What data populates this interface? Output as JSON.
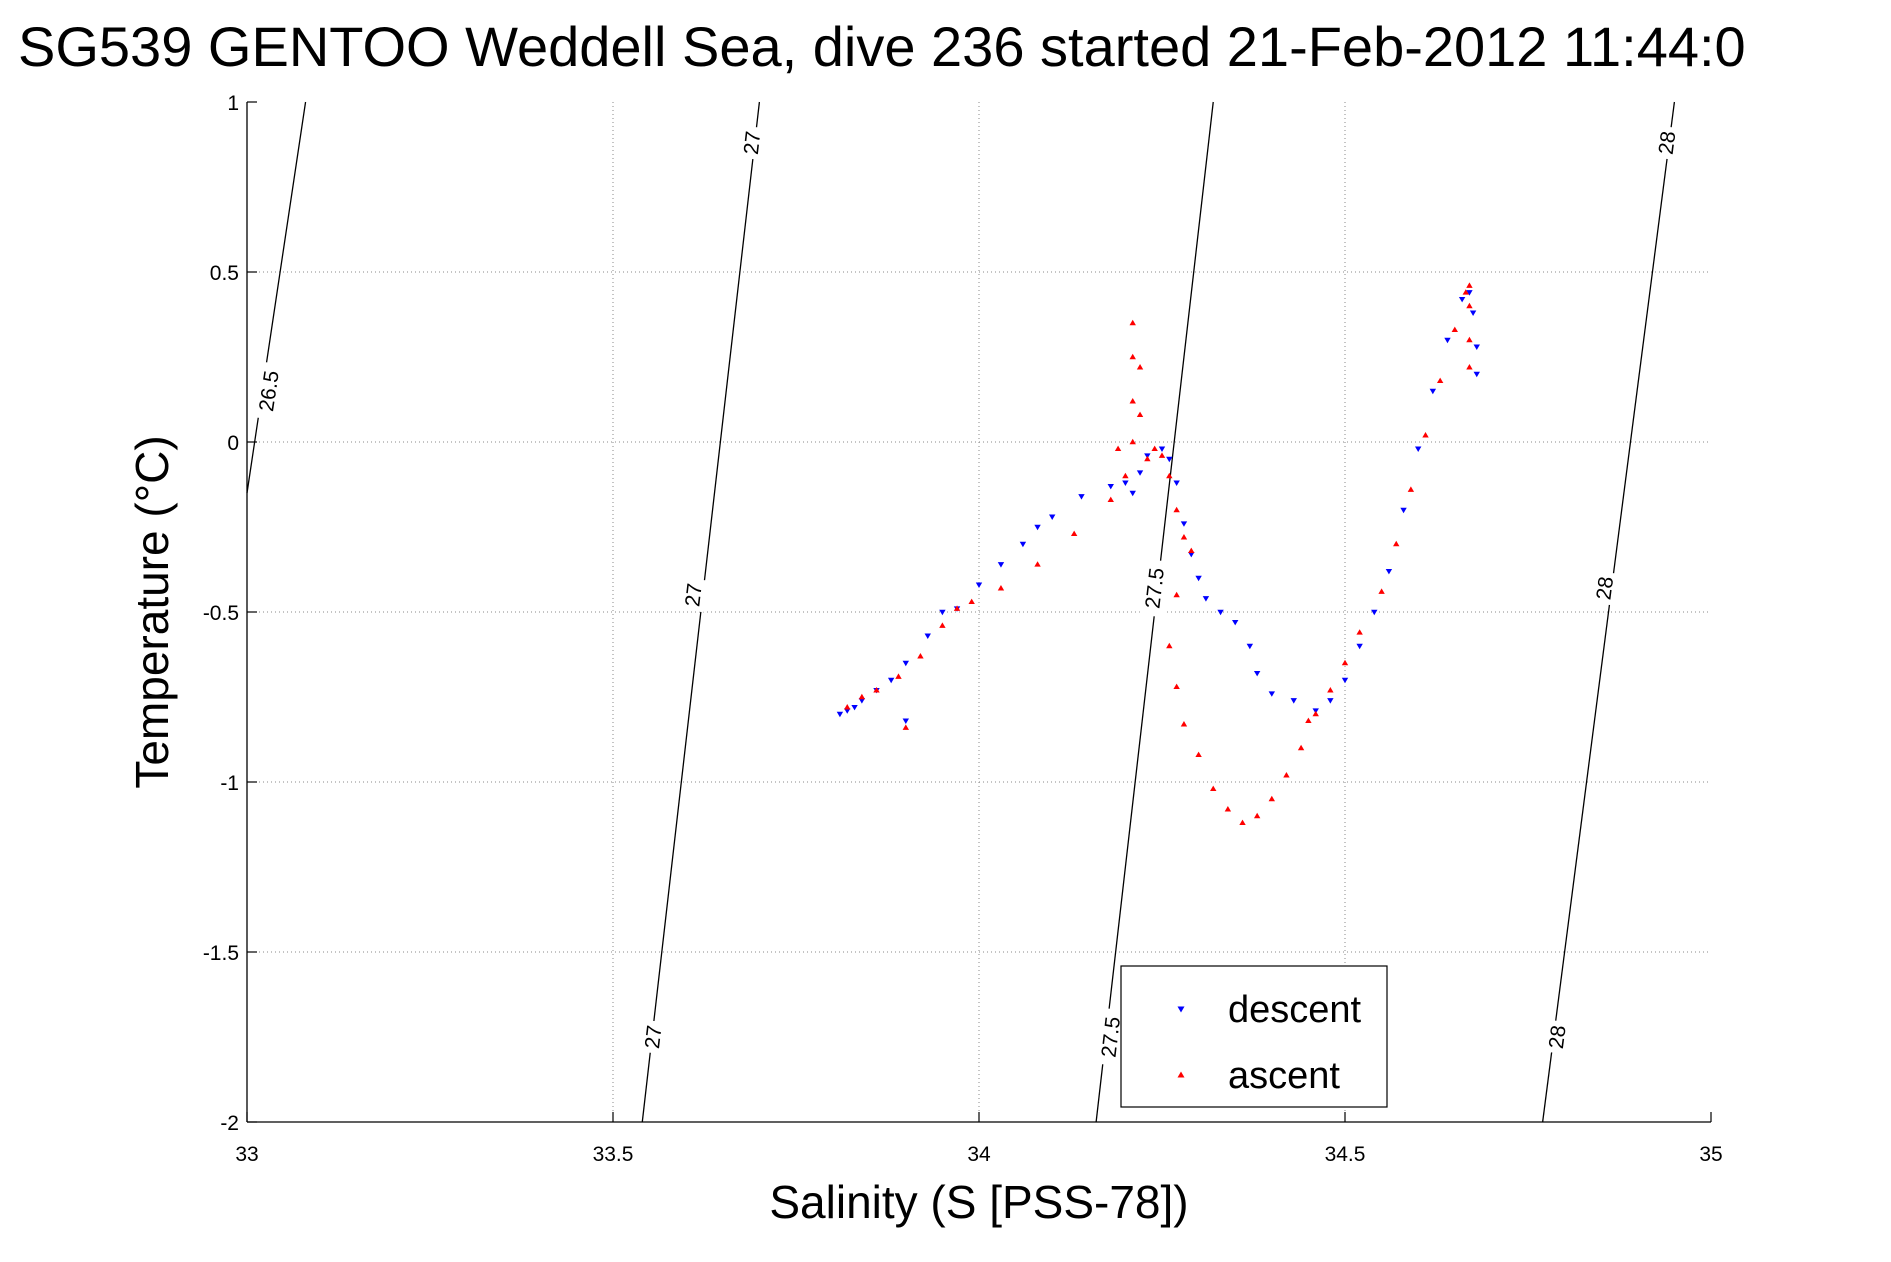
{
  "chart_data": {
    "type": "scatter",
    "title": "SG539 GENTOO Weddell Sea, dive 236 started 21-Feb-2012 11:44:0",
    "xlabel": "Salinity (S [PSS-78])",
    "ylabel": "Temperature (°C)",
    "xlim": [
      33,
      35
    ],
    "ylim": [
      -2,
      1
    ],
    "xticks": [
      33,
      33.5,
      34,
      34.5,
      35
    ],
    "xtick_labels": [
      "33",
      "33.5",
      "34",
      "34.5",
      "35"
    ],
    "yticks": [
      -2,
      -1.5,
      -1,
      -0.5,
      0,
      0.5,
      1
    ],
    "ytick_labels": [
      "-2",
      "-1.5",
      "-1",
      "-0.5",
      "0",
      "0.5",
      "1"
    ],
    "grid": true,
    "legend_position": "bottom-center",
    "contours": [
      {
        "level": "26.5",
        "points": [
          [
            33.08,
            1.0
          ],
          [
            33.0,
            -0.15
          ]
        ],
        "labels": [
          {
            "text": "26.5",
            "at": [
              33.03,
              0.15
            ]
          }
        ]
      },
      {
        "level": "27",
        "points": [
          [
            33.7,
            1.0
          ],
          [
            33.54,
            -2.0
          ]
        ],
        "labels": [
          {
            "text": "27",
            "at": [
              33.69,
              0.88
            ]
          },
          {
            "text": "27",
            "at": [
              33.61,
              -0.45
            ]
          },
          {
            "text": "27",
            "at": [
              33.555,
              -1.75
            ]
          }
        ]
      },
      {
        "level": "27.5",
        "points": [
          [
            34.32,
            1.0
          ],
          [
            34.16,
            -2.0
          ]
        ],
        "labels": [
          {
            "text": "27.5",
            "at": [
              34.24,
              -0.43
            ]
          },
          {
            "text": "27.5",
            "at": [
              34.18,
              -1.75
            ]
          }
        ]
      },
      {
        "level": "28",
        "points": [
          [
            34.95,
            1.0
          ],
          [
            34.77,
            -2.0
          ]
        ],
        "labels": [
          {
            "text": "28",
            "at": [
              34.94,
              0.88
            ]
          },
          {
            "text": "28",
            "at": [
              34.855,
              -0.43
            ]
          },
          {
            "text": "28",
            "at": [
              34.79,
              -1.75
            ]
          }
        ]
      }
    ],
    "series": [
      {
        "name": "descent",
        "color": "#0000ff",
        "marker": "triangle-down",
        "points": [
          [
            33.81,
            -0.8
          ],
          [
            33.82,
            -0.79
          ],
          [
            33.83,
            -0.78
          ],
          [
            33.84,
            -0.76
          ],
          [
            33.86,
            -0.73
          ],
          [
            33.88,
            -0.7
          ],
          [
            33.9,
            -0.65
          ],
          [
            33.93,
            -0.57
          ],
          [
            33.97,
            -0.49
          ],
          [
            34.0,
            -0.42
          ],
          [
            34.03,
            -0.36
          ],
          [
            34.06,
            -0.3
          ],
          [
            34.1,
            -0.22
          ],
          [
            34.14,
            -0.16
          ],
          [
            34.18,
            -0.13
          ],
          [
            34.2,
            -0.12
          ],
          [
            34.21,
            -0.15
          ],
          [
            34.22,
            -0.09
          ],
          [
            34.23,
            -0.04
          ],
          [
            34.25,
            -0.02
          ],
          [
            34.26,
            -0.05
          ],
          [
            34.27,
            -0.12
          ],
          [
            34.28,
            -0.24
          ],
          [
            34.29,
            -0.33
          ],
          [
            34.3,
            -0.4
          ],
          [
            34.31,
            -0.46
          ],
          [
            34.33,
            -0.5
          ],
          [
            34.35,
            -0.53
          ],
          [
            34.37,
            -0.6
          ],
          [
            34.38,
            -0.68
          ],
          [
            34.4,
            -0.74
          ],
          [
            34.43,
            -0.76
          ],
          [
            34.46,
            -0.79
          ],
          [
            34.48,
            -0.76
          ],
          [
            34.5,
            -0.7
          ],
          [
            34.52,
            -0.6
          ],
          [
            34.54,
            -0.5
          ],
          [
            34.56,
            -0.38
          ],
          [
            34.58,
            -0.2
          ],
          [
            34.6,
            -0.02
          ],
          [
            34.62,
            0.15
          ],
          [
            34.64,
            0.3
          ],
          [
            34.66,
            0.42
          ],
          [
            34.67,
            0.44
          ],
          [
            34.675,
            0.38
          ],
          [
            34.68,
            0.28
          ],
          [
            34.68,
            0.2
          ],
          [
            33.9,
            -0.82
          ],
          [
            33.95,
            -0.5
          ],
          [
            34.08,
            -0.25
          ]
        ]
      },
      {
        "name": "ascent",
        "color": "#ff0000",
        "marker": "triangle-up",
        "points": [
          [
            33.82,
            -0.78
          ],
          [
            33.84,
            -0.75
          ],
          [
            33.86,
            -0.73
          ],
          [
            33.89,
            -0.69
          ],
          [
            33.92,
            -0.63
          ],
          [
            33.95,
            -0.54
          ],
          [
            33.99,
            -0.47
          ],
          [
            34.03,
            -0.43
          ],
          [
            34.08,
            -0.36
          ],
          [
            34.13,
            -0.27
          ],
          [
            34.18,
            -0.17
          ],
          [
            34.2,
            -0.1
          ],
          [
            34.21,
            0.0
          ],
          [
            34.21,
            0.12
          ],
          [
            34.21,
            0.25
          ],
          [
            34.21,
            0.35
          ],
          [
            34.22,
            0.22
          ],
          [
            34.22,
            0.08
          ],
          [
            34.23,
            -0.05
          ],
          [
            34.24,
            -0.02
          ],
          [
            34.25,
            -0.04
          ],
          [
            34.26,
            -0.1
          ],
          [
            34.27,
            -0.2
          ],
          [
            34.28,
            -0.28
          ],
          [
            34.29,
            -0.32
          ],
          [
            34.27,
            -0.45
          ],
          [
            34.26,
            -0.6
          ],
          [
            34.27,
            -0.72
          ],
          [
            34.28,
            -0.83
          ],
          [
            34.3,
            -0.92
          ],
          [
            34.32,
            -1.02
          ],
          [
            34.34,
            -1.08
          ],
          [
            34.36,
            -1.12
          ],
          [
            34.38,
            -1.1
          ],
          [
            34.4,
            -1.05
          ],
          [
            34.42,
            -0.98
          ],
          [
            34.44,
            -0.9
          ],
          [
            34.45,
            -0.82
          ],
          [
            34.46,
            -0.8
          ],
          [
            34.48,
            -0.73
          ],
          [
            34.5,
            -0.65
          ],
          [
            34.52,
            -0.56
          ],
          [
            34.55,
            -0.44
          ],
          [
            34.57,
            -0.3
          ],
          [
            34.59,
            -0.14
          ],
          [
            34.61,
            0.02
          ],
          [
            34.63,
            0.18
          ],
          [
            34.65,
            0.33
          ],
          [
            34.665,
            0.44
          ],
          [
            34.67,
            0.46
          ],
          [
            34.67,
            0.4
          ],
          [
            34.67,
            0.3
          ],
          [
            34.67,
            0.22
          ],
          [
            33.9,
            -0.84
          ],
          [
            33.97,
            -0.49
          ],
          [
            34.19,
            -0.02
          ]
        ]
      }
    ]
  }
}
